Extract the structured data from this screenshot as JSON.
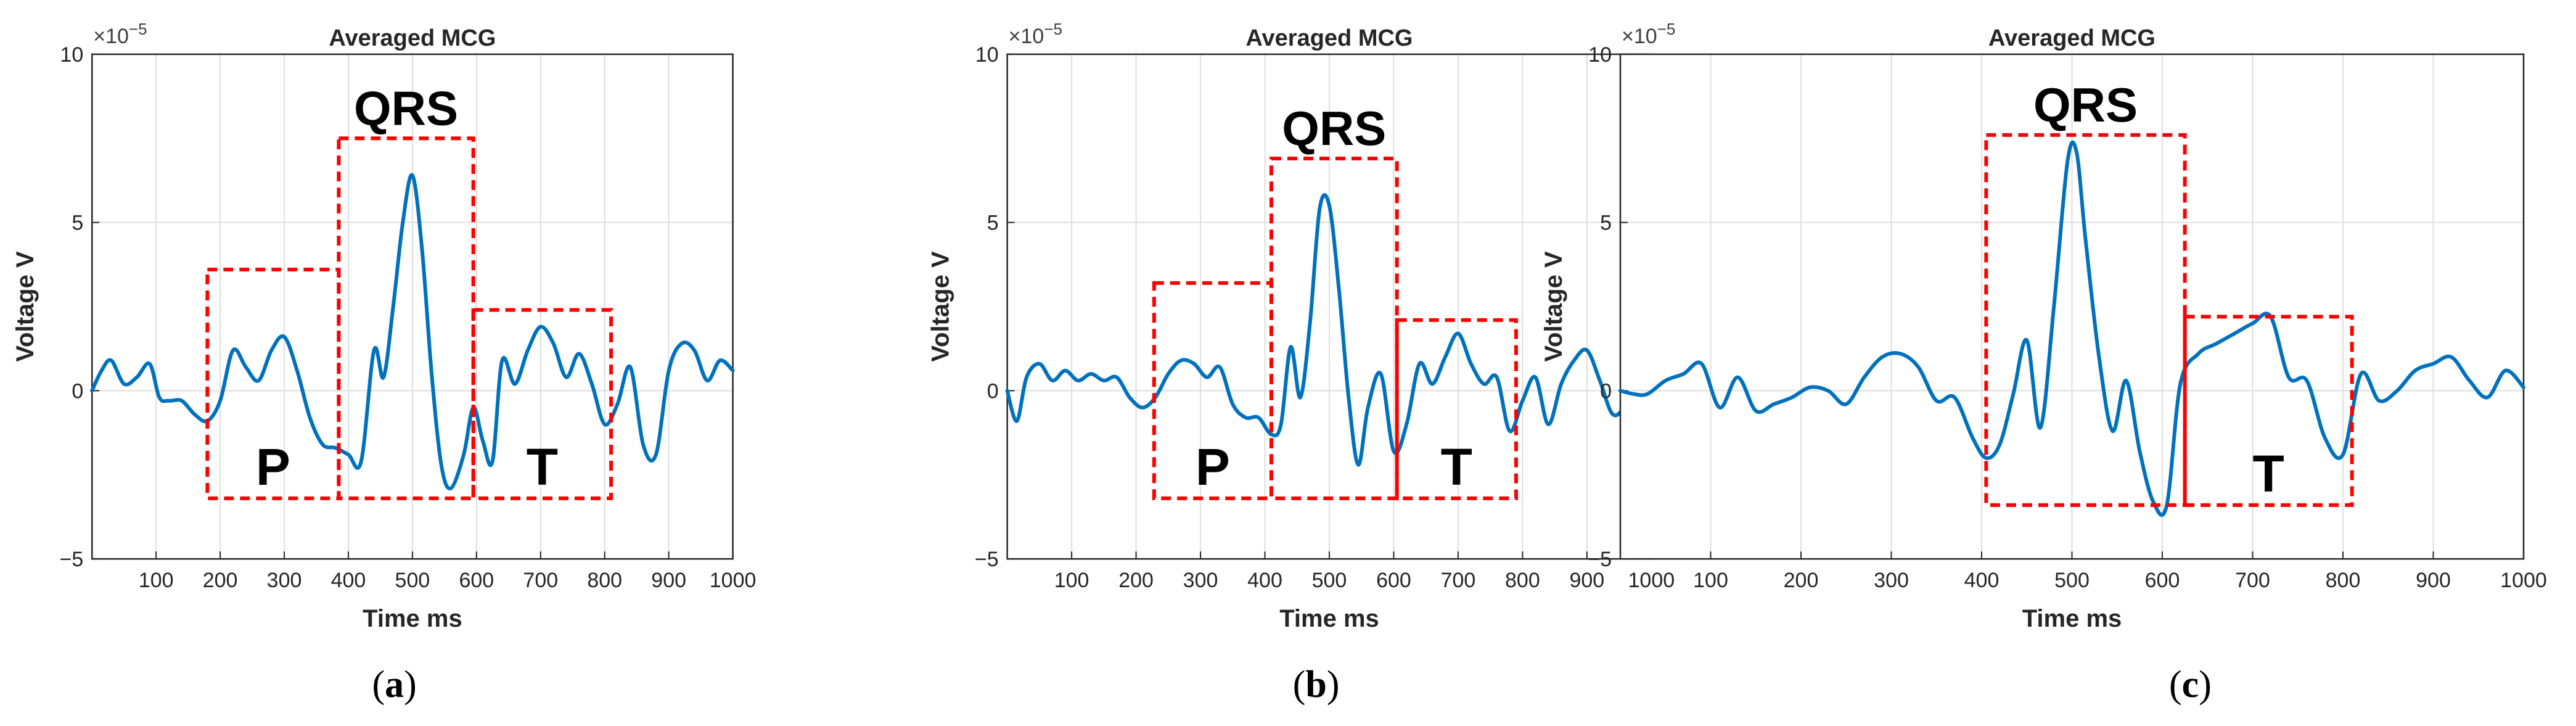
{
  "figure": {
    "panels": [
      {
        "caption_letter": "a"
      },
      {
        "caption_letter": "b"
      },
      {
        "caption_letter": "c"
      }
    ]
  },
  "chart_data": [
    {
      "type": "line",
      "title": "Averaged MCG",
      "xlabel": "Time ms",
      "ylabel": "Voltage V",
      "y_multiplier": "×10^-5",
      "xlim": [
        0,
        1000
      ],
      "ylim": [
        -5,
        10
      ],
      "xticks": [
        100,
        200,
        300,
        400,
        500,
        600,
        700,
        800,
        900,
        1000
      ],
      "yticks": [
        -5,
        0,
        5,
        10
      ],
      "grid": true,
      "line_color": "#0072BD",
      "box_color": "#ff0000",
      "series": [
        {
          "x": [
            0,
            15,
            30,
            50,
            70,
            90,
            105,
            120,
            140,
            160,
            180,
            200,
            220,
            240,
            260,
            280,
            300,
            320,
            340,
            360,
            380,
            400,
            420,
            440,
            455,
            470,
            485,
            500,
            515,
            530,
            545,
            560,
            580,
            595,
            610,
            625,
            640,
            660,
            680,
            700,
            720,
            740,
            760,
            780,
            800,
            820,
            840,
            860,
            880,
            900,
            920,
            940,
            960,
            980,
            1000
          ],
          "y": [
            0,
            0.6,
            0.9,
            0.2,
            0.4,
            0.8,
            -0.2,
            -0.3,
            -0.3,
            -0.7,
            -0.9,
            -0.3,
            1.2,
            0.7,
            0.3,
            1.2,
            1.6,
            0.6,
            -0.8,
            -1.6,
            -1.7,
            -1.9,
            -2.1,
            1.2,
            0.4,
            2.5,
            5.0,
            6.4,
            4.2,
            0.5,
            -2.2,
            -2.9,
            -1.9,
            -0.5,
            -1.5,
            -2.1,
            0.9,
            0.2,
            1.2,
            1.9,
            1.4,
            0.4,
            1.1,
            0.2,
            -1.0,
            -0.4,
            0.7,
            -1.6,
            -1.9,
            0.6,
            1.4,
            1.2,
            0.3,
            0.9,
            0.6
          ]
        }
      ],
      "regions": [
        {
          "label": "P",
          "x": [
            180,
            385
          ],
          "y": [
            -3.2,
            3.6
          ]
        },
        {
          "label": "QRS",
          "x": [
            385,
            595
          ],
          "y": [
            -3.2,
            7.5
          ]
        },
        {
          "label": "T",
          "x": [
            595,
            810
          ],
          "y": [
            -3.2,
            2.4
          ]
        }
      ]
    },
    {
      "type": "line",
      "title": "Averaged MCG",
      "xlabel": "Time ms",
      "ylabel": "Voltage V",
      "y_multiplier": "×10^-5",
      "xlim": [
        0,
        1000
      ],
      "ylim": [
        -5,
        10
      ],
      "xticks": [
        100,
        200,
        300,
        400,
        500,
        600,
        700,
        800,
        900,
        1000
      ],
      "yticks": [
        -5,
        0,
        5,
        10
      ],
      "grid": true,
      "line_color": "#0072BD",
      "box_color": "#ff0000",
      "series": [
        {
          "x": [
            0,
            15,
            30,
            50,
            70,
            90,
            110,
            130,
            150,
            170,
            190,
            210,
            230,
            250,
            270,
            290,
            310,
            330,
            350,
            370,
            390,
            410,
            425,
            440,
            455,
            470,
            485,
            500,
            515,
            530,
            545,
            560,
            580,
            600,
            620,
            640,
            660,
            680,
            700,
            720,
            740,
            760,
            780,
            800,
            820,
            840,
            860,
            880,
            900,
            920,
            940,
            960,
            980,
            1000
          ],
          "y": [
            0,
            -0.9,
            0.4,
            0.8,
            0.3,
            0.6,
            0.3,
            0.5,
            0.3,
            0.4,
            -0.2,
            -0.5,
            -0.2,
            0.5,
            0.9,
            0.8,
            0.4,
            0.7,
            -0.4,
            -0.8,
            -0.8,
            -1.3,
            -1.0,
            1.3,
            -0.2,
            2.0,
            5.4,
            5.5,
            3.0,
            -0.2,
            -2.2,
            -0.5,
            0.5,
            -1.8,
            -1.0,
            0.8,
            0.2,
            1.0,
            1.7,
            0.8,
            0.2,
            0.4,
            -1.2,
            -0.3,
            0.4,
            -1.0,
            0.2,
            0.9,
            1.2,
            0.3,
            -0.7,
            -0.4,
            0.6,
            0.8
          ]
        }
      ],
      "regions": [
        {
          "label": "P",
          "x": [
            228,
            410
          ],
          "y": [
            -3.2,
            3.2
          ]
        },
        {
          "label": "QRS",
          "x": [
            410,
            605
          ],
          "y": [
            -3.2,
            6.9
          ]
        },
        {
          "label": "T",
          "x": [
            605,
            790
          ],
          "y": [
            -3.2,
            2.1
          ]
        }
      ]
    },
    {
      "type": "line",
      "title": "Averaged MCG",
      "xlabel": "Time ms",
      "ylabel": "Voltage V",
      "y_multiplier": "×10^-5",
      "xlim": [
        0,
        1000
      ],
      "ylim": [
        -5,
        10
      ],
      "xticks": [
        100,
        200,
        300,
        400,
        500,
        600,
        700,
        800,
        900,
        1000
      ],
      "yticks": [
        -5,
        0,
        5,
        10
      ],
      "grid": true,
      "line_color": "#0072BD",
      "box_color": "#ff0000",
      "series": [
        {
          "x": [
            0,
            15,
            30,
            50,
            70,
            90,
            110,
            130,
            150,
            170,
            190,
            210,
            230,
            250,
            270,
            290,
            310,
            330,
            350,
            370,
            390,
            405,
            420,
            435,
            450,
            465,
            480,
            495,
            505,
            515,
            530,
            545,
            560,
            575,
            590,
            605,
            620,
            640,
            660,
            680,
            700,
            720,
            740,
            760,
            780,
            800,
            820,
            840,
            860,
            880,
            900,
            920,
            940,
            960,
            980,
            1000
          ],
          "y": [
            0,
            -0.1,
            -0.1,
            0.3,
            0.5,
            0.8,
            -0.5,
            0.4,
            -0.6,
            -0.4,
            -0.2,
            0.1,
            0.0,
            -0.4,
            0.4,
            1.0,
            1.1,
            0.7,
            -0.3,
            -0.2,
            -1.4,
            -2.0,
            -1.6,
            -0.1,
            1.5,
            -1.1,
            2.5,
            6.8,
            7.1,
            4.5,
            1.0,
            -1.2,
            0.3,
            -1.8,
            -3.3,
            -3.4,
            0.2,
            1.1,
            1.4,
            1.7,
            2.0,
            2.2,
            0.4,
            0.3,
            -1.4,
            -1.9,
            0.5,
            -0.3,
            0.0,
            0.6,
            0.8,
            1.0,
            0.3,
            -0.2,
            0.6,
            0.1
          ]
        }
      ],
      "regions": [
        {
          "label": "QRS",
          "x": [
            405,
            625
          ],
          "y": [
            -3.4,
            7.6
          ]
        },
        {
          "label": "T",
          "x": [
            625,
            810
          ],
          "y": [
            -3.4,
            2.2
          ]
        }
      ]
    }
  ]
}
